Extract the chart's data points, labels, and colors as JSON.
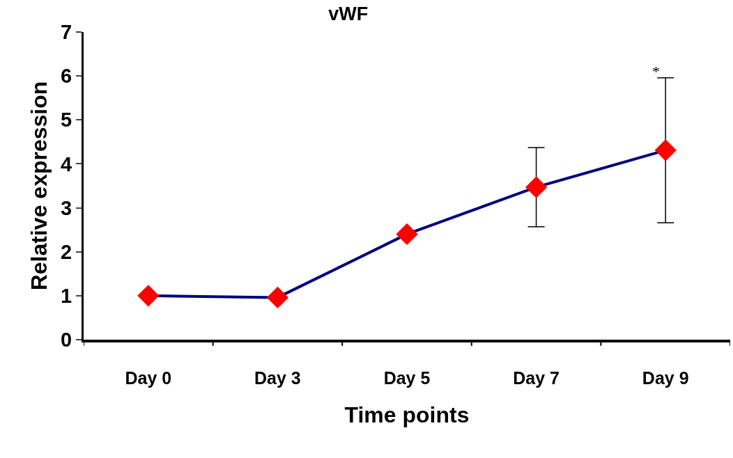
{
  "chart_data": {
    "type": "line",
    "title": "vWF",
    "xlabel": "Time points",
    "ylabel": "Relative expression",
    "categories": [
      "Day 0",
      "Day 3",
      "Day 5",
      "Day 7",
      "Day 9"
    ],
    "series": [
      {
        "color": "#000080",
        "values": [
          1.0,
          0.96,
          2.4,
          3.47,
          4.31
        ],
        "errors": [
          null,
          null,
          null,
          0.9,
          1.65
        ]
      }
    ],
    "marker": "diamond",
    "ylim": [
      0,
      7
    ],
    "yticks": [
      0,
      1,
      2,
      3,
      4,
      5,
      6,
      7
    ],
    "annotations": [
      "*"
    ]
  }
}
